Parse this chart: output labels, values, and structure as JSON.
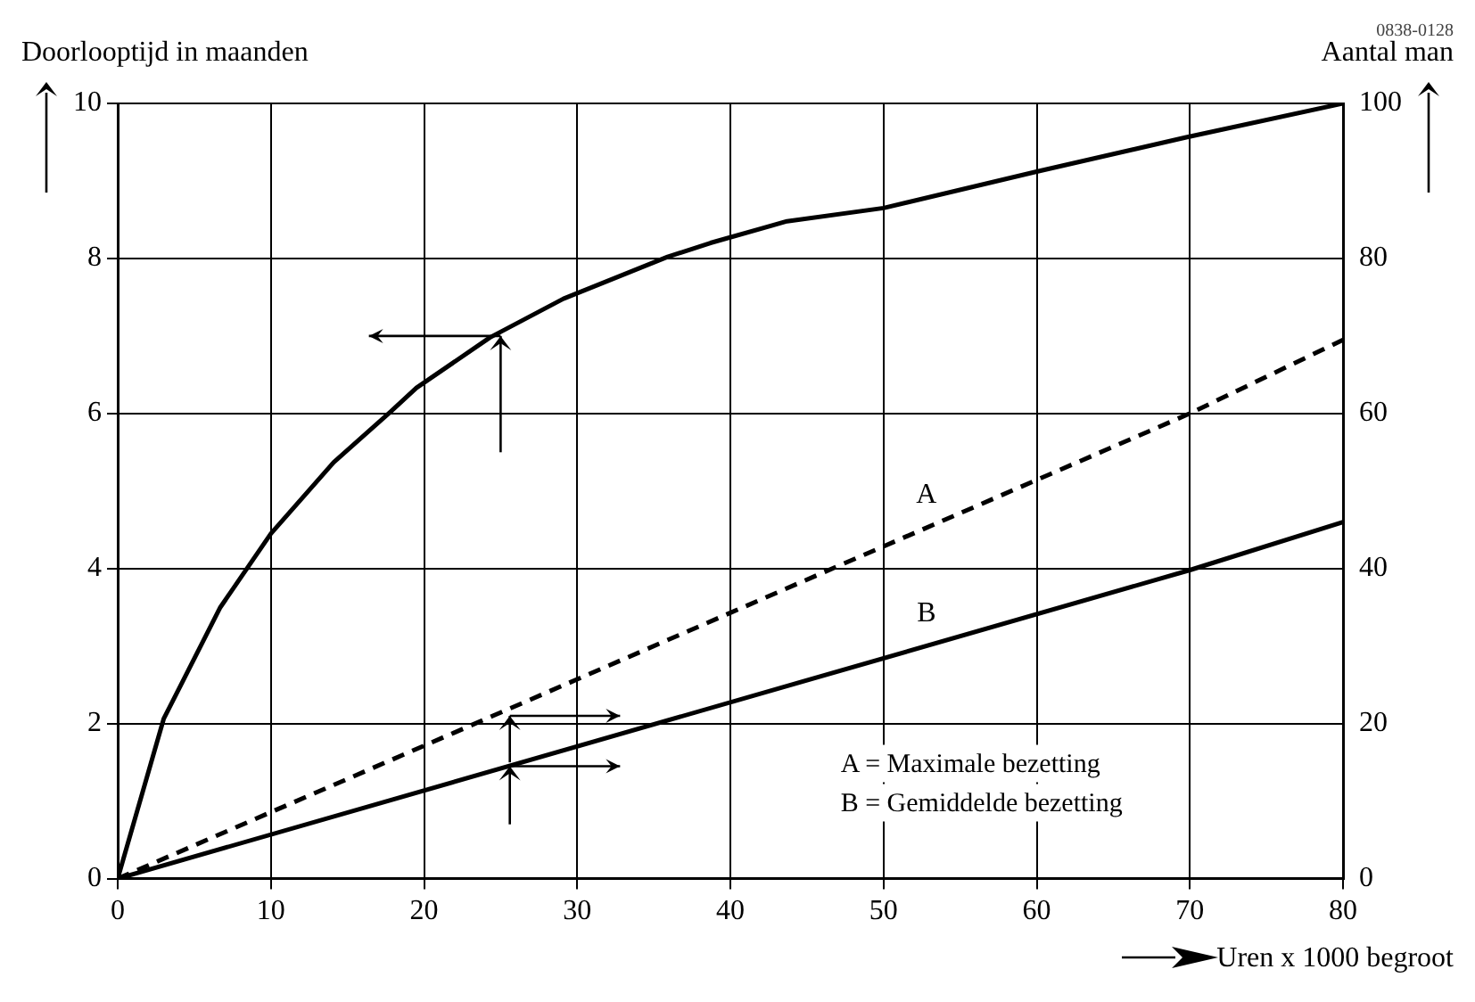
{
  "chart_data": {
    "type": "line",
    "xlabel": "Uren x 1000 begroot",
    "ylabel": "Doorlooptijd in maanden",
    "y2label": "Aantal man",
    "xlim": [
      0,
      80
    ],
    "xticks": [
      0,
      10,
      20,
      30,
      40,
      50,
      60,
      70,
      80
    ],
    "ylim": [
      0,
      10
    ],
    "yticks": [
      0,
      2,
      4,
      6,
      8,
      10
    ],
    "y2lim": [
      0,
      100
    ],
    "y2ticks": [
      0,
      20,
      40,
      60,
      80,
      100
    ],
    "grid": true,
    "legend": false,
    "marker": "none",
    "series": [
      {
        "color": "#000000",
        "line_style": "solid",
        "x": [
          0,
          3,
          6.7,
          10,
          14.1,
          17.8,
          19.5,
          24.3,
          29.1,
          35.9,
          38.7,
          43.7,
          50,
          60,
          69.7,
          80
        ],
        "values": [
          0,
          2.06,
          3.5,
          4.45,
          5.37,
          6.02,
          6.33,
          6.98,
          7.48,
          8.02,
          8.2,
          8.48,
          8.65,
          9.12,
          9.56,
          10
        ]
      },
      {
        "name": "A",
        "color": "#000000",
        "line_style": "dashed",
        "axis": "y2",
        "x": [
          0,
          70,
          80
        ],
        "values": [
          0,
          60,
          69.5
        ]
      },
      {
        "name": "B",
        "color": "#000000",
        "line_style": "solid",
        "axis": "y2",
        "x": [
          0,
          70,
          80
        ],
        "values": [
          0,
          39.8,
          46
        ]
      }
    ],
    "annotations": [
      "A = Maximale bezetting",
      "B = Gemiddelde bezetting",
      "0838-0128"
    ]
  }
}
